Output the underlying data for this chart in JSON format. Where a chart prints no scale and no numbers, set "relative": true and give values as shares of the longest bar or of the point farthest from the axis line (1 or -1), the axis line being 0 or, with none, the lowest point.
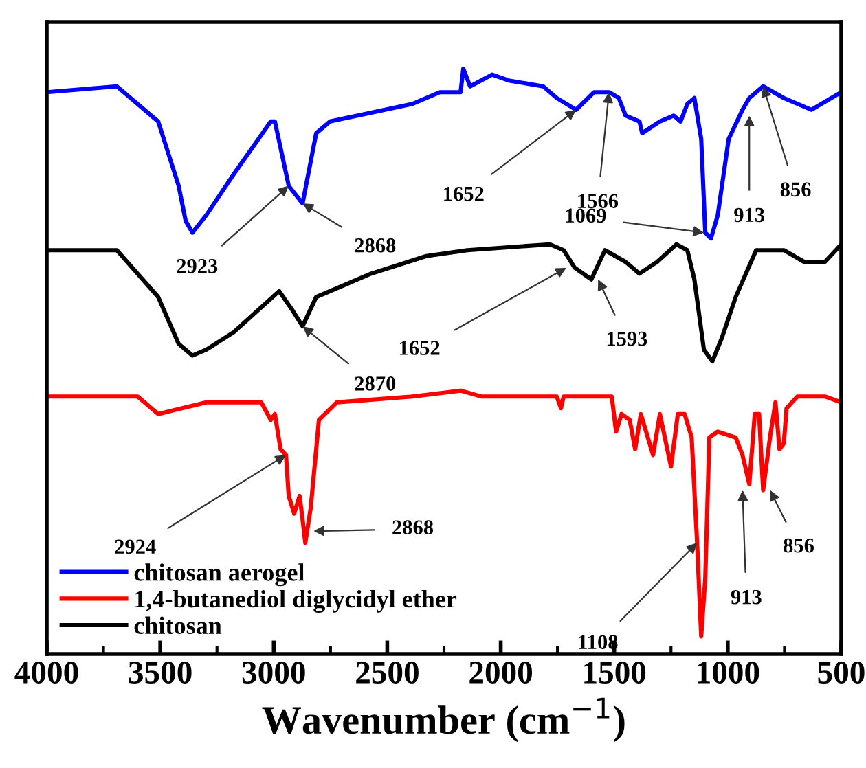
{
  "chart_data": {
    "type": "line",
    "relative": true,
    "xlabel": "Wavenumber (cm$^{−1}$)",
    "xlim": [
      4000,
      500
    ],
    "xticks": [
      4000,
      3500,
      3000,
      2500,
      2000,
      1500,
      1000,
      500
    ],
    "tick_labels": "x",
    "grid": false,
    "legend": "bottom left",
    "series": [
      {
        "name": "chitosan aerogel",
        "color": "#0000ff",
        "x": [
          4000,
          3691,
          3509,
          3419,
          3388,
          3358,
          3297,
          3176,
          3013,
          2995,
          2934,
          2873,
          2813,
          2752,
          2389,
          2268,
          2177,
          2165,
          2135,
          2038,
          1965,
          1813,
          1753,
          1668,
          1589,
          1523,
          1480,
          1450,
          1389,
          1377,
          1299,
          1238,
          1208,
          1178,
          1147,
          1117,
          1099,
          1074,
          1044,
          996,
          935,
          905,
          844,
          753,
          632,
          500
        ],
        "values": [
          0.96,
          0.97,
          0.91,
          0.8,
          0.74,
          0.72,
          0.75,
          0.82,
          0.91,
          0.91,
          0.8,
          0.77,
          0.89,
          0.91,
          0.94,
          0.96,
          0.96,
          1.0,
          0.97,
          0.99,
          0.98,
          0.97,
          0.95,
          0.93,
          0.96,
          0.96,
          0.95,
          0.92,
          0.91,
          0.89,
          0.91,
          0.92,
          0.91,
          0.94,
          0.95,
          0.88,
          0.72,
          0.71,
          0.75,
          0.88,
          0.93,
          0.95,
          0.97,
          0.95,
          0.93,
          0.96
        ]
      },
      {
        "name": "1,4-butanediol diglycidyl ether",
        "color": "#ff0000",
        "x": [
          4000,
          3600,
          3509,
          3297,
          3055,
          3013,
          2995,
          2970,
          2946,
          2934,
          2910,
          2886,
          2873,
          2861,
          2837,
          2801,
          2722,
          2389,
          2177,
          2086,
          1753,
          1735,
          1723,
          1511,
          1492,
          1468,
          1432,
          1408,
          1383,
          1329,
          1299,
          1250,
          1220,
          1190,
          1159,
          1135,
          1117,
          1099,
          1081,
          1044,
          965,
          935,
          905,
          881,
          862,
          844,
          814,
          790,
          772,
          753,
          741,
          693,
          572,
          500
        ],
        "values": [
          0.44,
          0.44,
          0.41,
          0.43,
          0.43,
          0.4,
          0.41,
          0.35,
          0.34,
          0.27,
          0.24,
          0.27,
          0.23,
          0.19,
          0.25,
          0.4,
          0.43,
          0.44,
          0.45,
          0.44,
          0.44,
          0.42,
          0.44,
          0.44,
          0.38,
          0.41,
          0.4,
          0.35,
          0.41,
          0.34,
          0.41,
          0.32,
          0.41,
          0.41,
          0.37,
          0.19,
          0.03,
          0.13,
          0.37,
          0.38,
          0.37,
          0.34,
          0.29,
          0.41,
          0.41,
          0.28,
          0.37,
          0.43,
          0.35,
          0.36,
          0.42,
          0.44,
          0.44,
          0.43
        ]
      },
      {
        "name": "chitosan",
        "color": "#000000",
        "x": [
          4000,
          3691,
          3509,
          3419,
          3358,
          3297,
          3176,
          2976,
          2922,
          2873,
          2813,
          2571,
          2328,
          2147,
          1783,
          1723,
          1674,
          1601,
          1541,
          1450,
          1389,
          1311,
          1226,
          1178,
          1147,
          1105,
          1068,
          1026,
          965,
          875,
          753,
          663,
          572,
          500
        ],
        "values": [
          0.69,
          0.69,
          0.61,
          0.53,
          0.51,
          0.52,
          0.55,
          0.62,
          0.59,
          0.56,
          0.61,
          0.65,
          0.68,
          0.69,
          0.7,
          0.69,
          0.66,
          0.64,
          0.69,
          0.67,
          0.65,
          0.67,
          0.7,
          0.69,
          0.64,
          0.52,
          0.5,
          0.54,
          0.61,
          0.69,
          0.69,
          0.67,
          0.67,
          0.7
        ]
      }
    ],
    "annotations": [
      {
        "text": "2923",
        "x": 2934,
        "y": 0.8
      },
      {
        "text": "2868",
        "x": 2873,
        "y": 0.77
      },
      {
        "text": "1652",
        "x": 1668,
        "y": 0.93
      },
      {
        "text": "1566",
        "x": 1523,
        "y": 0.96
      },
      {
        "text": "1069",
        "x": 1105,
        "y": 0.72
      },
      {
        "text": "913",
        "x": 905,
        "y": 0.92
      },
      {
        "text": "856",
        "x": 844,
        "y": 0.97
      },
      {
        "text": "1652",
        "x": 1711,
        "y": 0.66
      },
      {
        "text": "1593",
        "x": 1571,
        "y": 0.64
      },
      {
        "text": "2870",
        "x": 2873,
        "y": 0.56
      },
      {
        "text": "2924",
        "x": 2946,
        "y": 0.34
      },
      {
        "text": "2868",
        "x": 2825,
        "y": 0.21
      },
      {
        "text": "913",
        "x": 935,
        "y": 0.28
      },
      {
        "text": "856",
        "x": 814,
        "y": 0.28
      },
      {
        "text": "1108",
        "x": 1135,
        "y": 0.19
      }
    ]
  }
}
